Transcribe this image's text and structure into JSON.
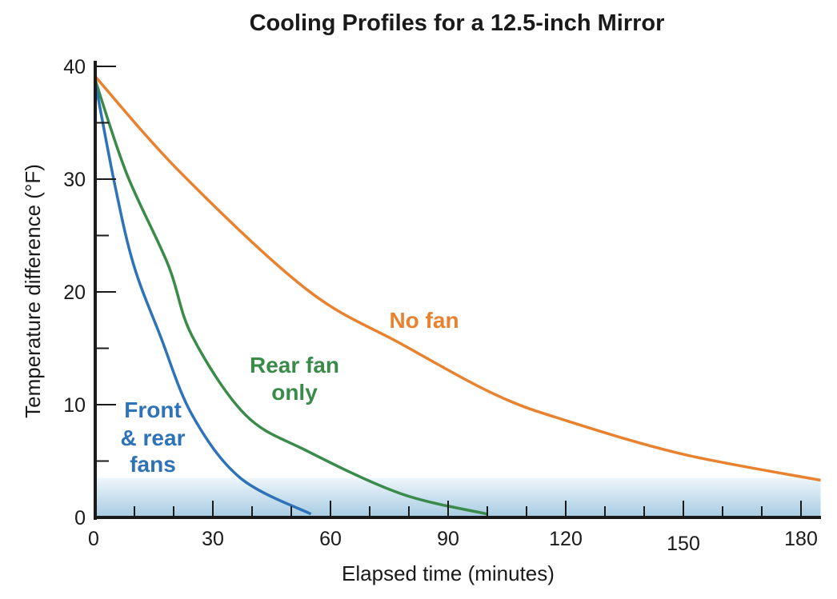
{
  "chart_data": {
    "type": "line",
    "title": "Cooling Profiles for a 12.5-inch Mirror",
    "xlabel": "Elapsed time (minutes)",
    "ylabel": "Temperature difference (°F)",
    "xlim": [
      0,
      185
    ],
    "ylim": [
      0,
      40
    ],
    "xticks": [
      0,
      30,
      60,
      90,
      120,
      150,
      180
    ],
    "yticks": [
      0,
      10,
      20,
      30,
      40
    ],
    "grid": false,
    "legend": "inline labels",
    "shaded_band": {
      "from": 0,
      "to": 3.5,
      "color_top": "#eef6fb",
      "color_bottom": "#a6cbe2"
    },
    "series": [
      {
        "name": "No fan",
        "color": "#e8822f",
        "x": [
          0,
          22,
          54,
          78,
          102,
          120,
          150,
          185
        ],
        "y": [
          39.1,
          30.5,
          20.2,
          15.4,
          10.9,
          8.6,
          5.6,
          3.3
        ]
      },
      {
        "name": "Rear fan only",
        "name_lines": [
          "Rear fan",
          "only"
        ],
        "color": "#3a8a4a",
        "x": [
          0,
          8,
          18.6,
          24.7,
          38.3,
          54,
          78,
          100
        ],
        "y": [
          38.8,
          30.5,
          22.4,
          16.1,
          9.1,
          5.9,
          2.1,
          0.3
        ]
      },
      {
        "name": "Front & rear fans",
        "name_lines": [
          "Front",
          "& rear",
          "fans"
        ],
        "color": "#2e72b8",
        "x": [
          0,
          5,
          9.8,
          16.6,
          24.7,
          37,
          55
        ],
        "y": [
          38.6,
          29.5,
          22.4,
          16.1,
          9.1,
          3.5,
          0.3
        ]
      }
    ]
  }
}
